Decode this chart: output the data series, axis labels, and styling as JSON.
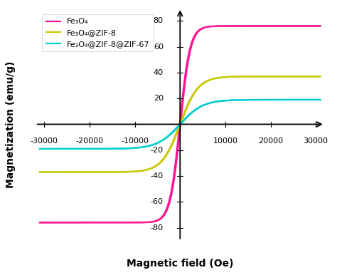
{
  "title": "",
  "xlabel": "Magnetic field (Oe)",
  "ylabel": "Magnetization (emu/g)",
  "xlim": [
    -32000,
    32000
  ],
  "ylim": [
    -90,
    90
  ],
  "xticks": [
    -30000,
    -20000,
    -10000,
    10000,
    20000,
    30000
  ],
  "yticks": [
    -80,
    -60,
    -40,
    -20,
    20,
    40,
    60,
    80
  ],
  "colors": {
    "fe3o4": "#FF1493",
    "fe3o4_zif8": "#C8C800",
    "fe3o4_zif8_zif67": "#00CED1"
  },
  "legend_labels": [
    "Fe₃O₄",
    "Fe₃O₄@ZIF-8",
    "Fe₃O₄@ZIF-8@ZIF-67"
  ],
  "fe3o4_sat": 76.0,
  "fe3o4_zif8_sat": 37.0,
  "fe3o4_zif8_zif67_sat": 19.0,
  "fe3o4_k": 0.00045,
  "fe3o4_zif8_k": 0.00025,
  "fe3o4_zif8_zif67_k": 0.0002,
  "background_color": "#ffffff"
}
